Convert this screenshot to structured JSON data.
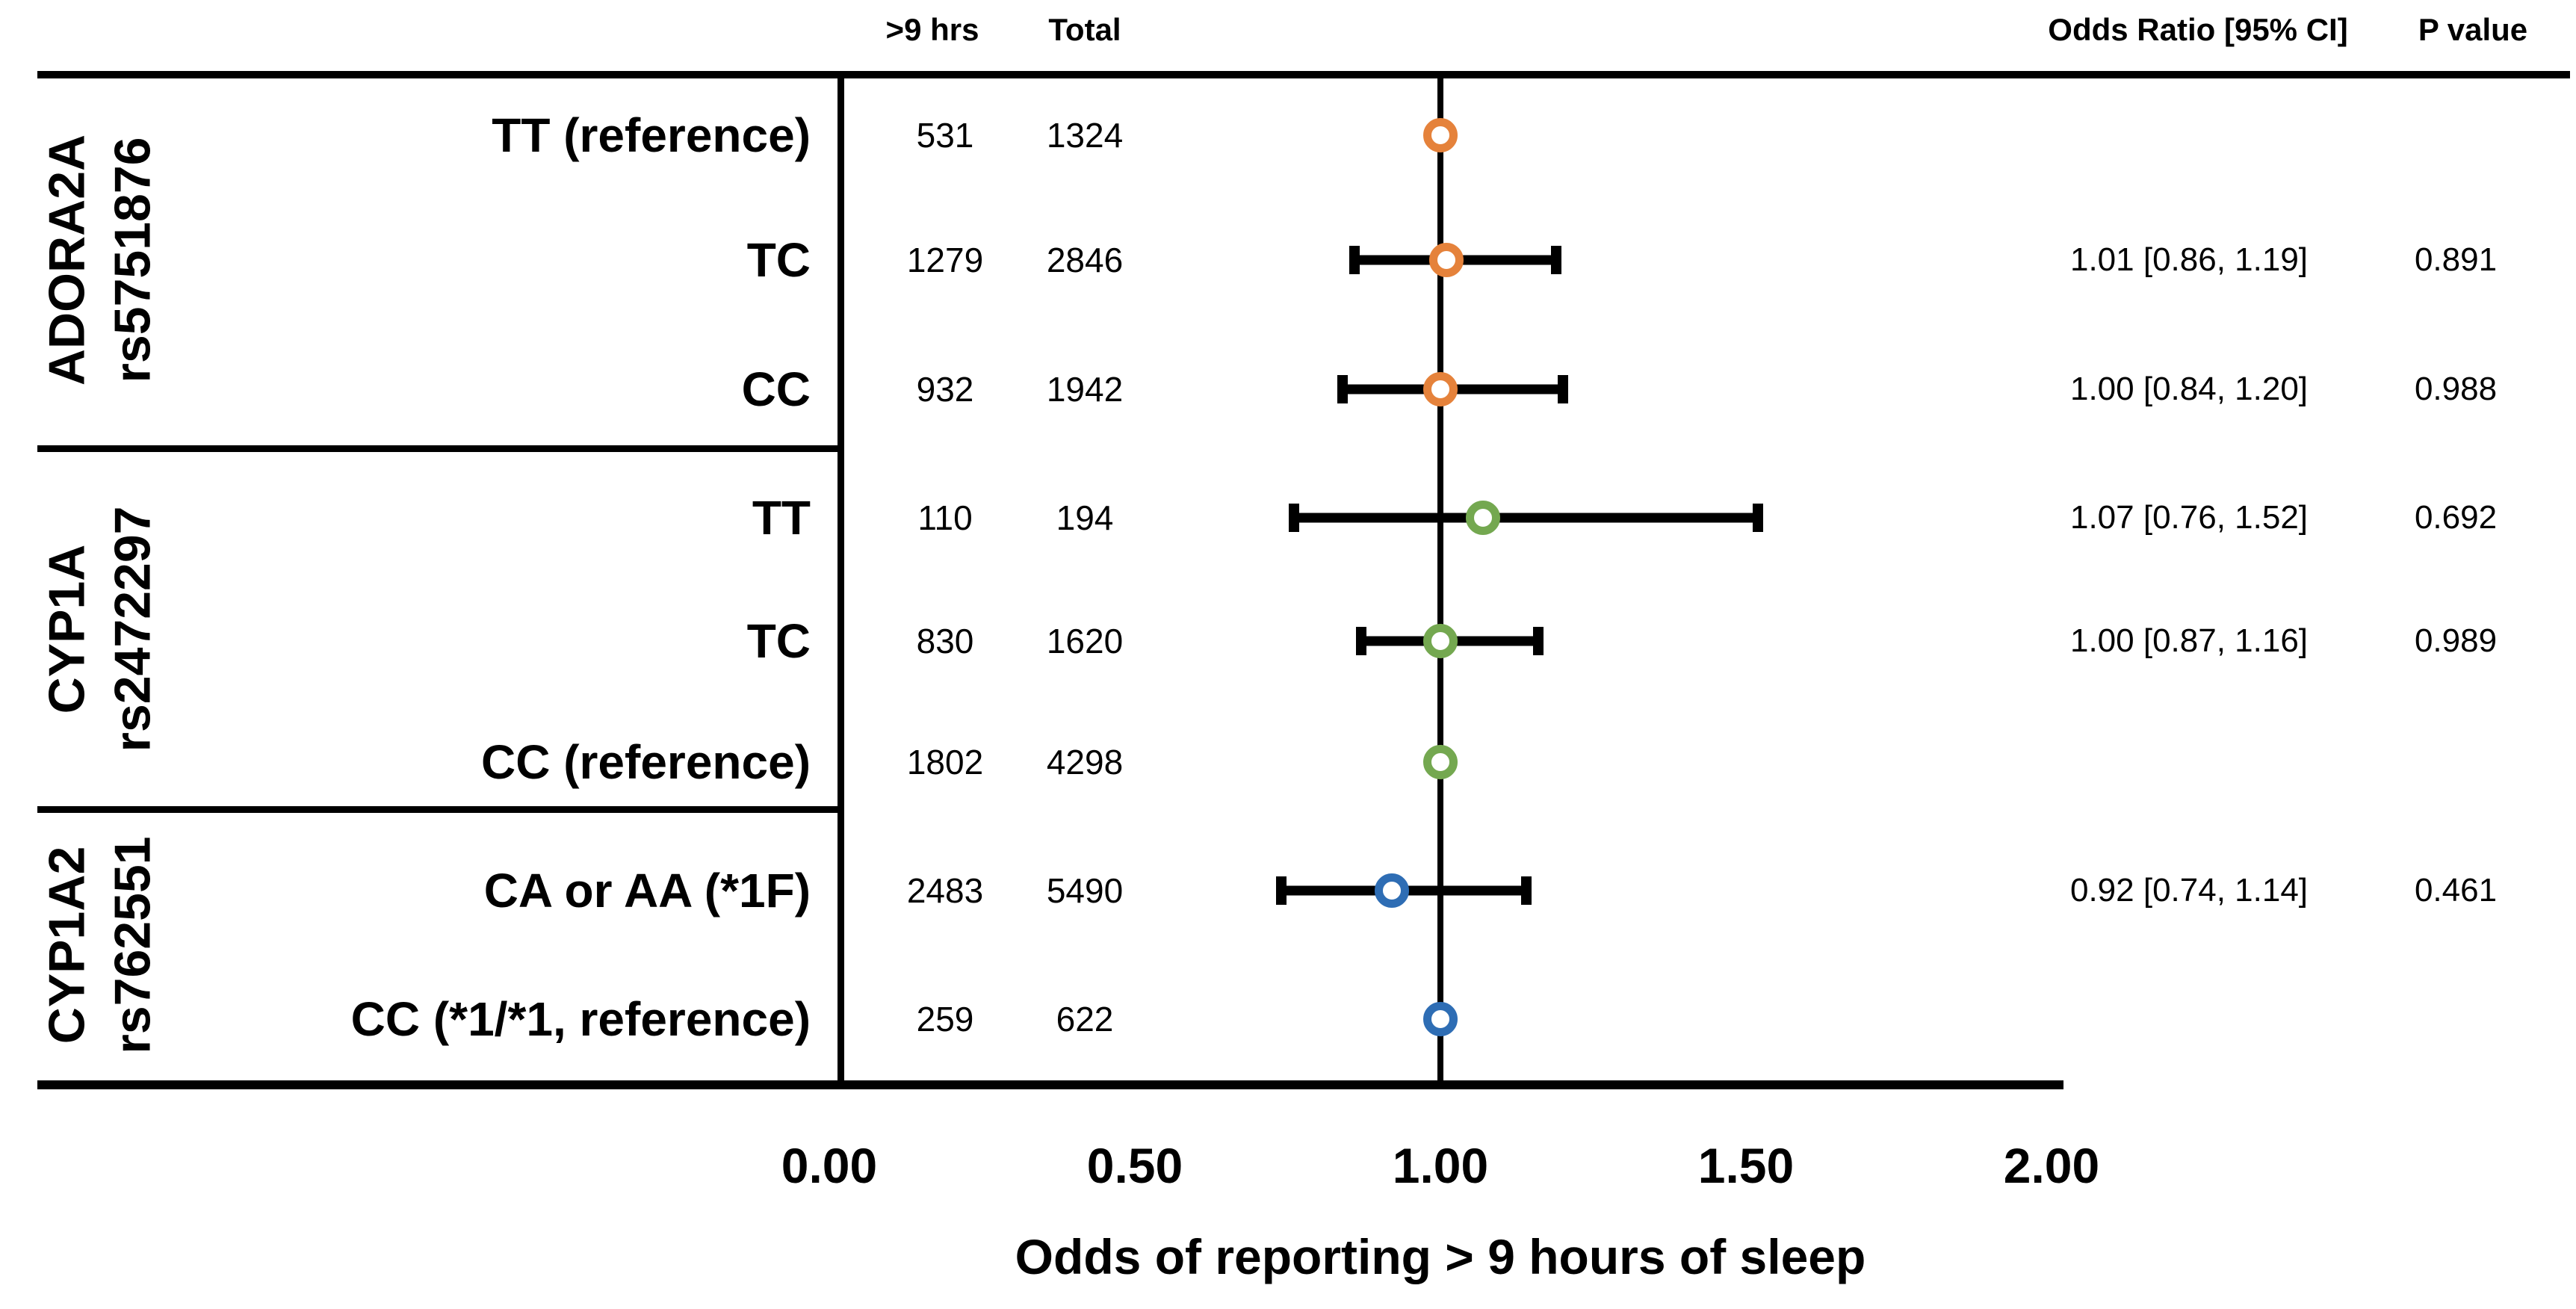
{
  "chart_data": {
    "type": "forest",
    "title": "",
    "xlabel": "Odds of reporting > 9 hours of sleep",
    "xlim": [
      0.0,
      2.0
    ],
    "reference_line": 1.0,
    "grid": false,
    "columns": [
      ">9 hrs",
      "Total",
      "Odds Ratio [95% CI]",
      "P value"
    ],
    "xticks": [
      {
        "label": "0.00",
        "value": 0.0
      },
      {
        "label": "0.50",
        "value": 0.5
      },
      {
        "label": "1.00",
        "value": 1.0
      },
      {
        "label": "1.50",
        "value": 1.5
      },
      {
        "label": "2.00",
        "value": 2.0
      }
    ],
    "groups": [
      {
        "gene": "ADORA2A",
        "rs": "rs5751876",
        "marker_color": "#E5823B",
        "rows": [
          {
            "genotype": "TT (reference)",
            "n_exposed": "531",
            "n_total": "1324",
            "or": 1.0,
            "ci": null,
            "or_label": "",
            "p_label": ""
          },
          {
            "genotype": "TC",
            "n_exposed": "1279",
            "n_total": "2846",
            "or": 1.01,
            "ci": [
              0.86,
              1.19
            ],
            "or_label": "1.01 [0.86, 1.19]",
            "p_label": "0.891"
          },
          {
            "genotype": "CC",
            "n_exposed": "932",
            "n_total": "1942",
            "or": 1.0,
            "ci": [
              0.84,
              1.2
            ],
            "or_label": "1.00 [0.84, 1.20]",
            "p_label": "0.988"
          }
        ]
      },
      {
        "gene": "CYP1A",
        "rs": "rs2472297",
        "marker_color": "#74A850",
        "rows": [
          {
            "genotype": "TT",
            "n_exposed": "110",
            "n_total": "194",
            "or": 1.07,
            "ci": [
              0.76,
              1.52
            ],
            "or_label": "1.07 [0.76, 1.52]",
            "p_label": "0.692"
          },
          {
            "genotype": "TC",
            "n_exposed": "830",
            "n_total": "1620",
            "or": 1.0,
            "ci": [
              0.87,
              1.16
            ],
            "or_label": "1.00 [0.87, 1.16]",
            "p_label": "0.989"
          },
          {
            "genotype": "CC (reference)",
            "n_exposed": "1802",
            "n_total": "4298",
            "or": 1.0,
            "ci": null,
            "or_label": "",
            "p_label": ""
          }
        ]
      },
      {
        "gene": "CYP1A2",
        "rs": "rs762551",
        "marker_color": "#2E6DB4",
        "rows": [
          {
            "genotype": "CA or AA (*1F)",
            "n_exposed": "2483",
            "n_total": "5490",
            "or": 0.92,
            "ci": [
              0.74,
              1.14
            ],
            "or_label": "0.92 [0.74, 1.14]",
            "p_label": "0.461"
          },
          {
            "genotype": "CC (*1/*1, reference)",
            "n_exposed": "259",
            "n_total": "622",
            "or": 1.0,
            "ci": null,
            "or_label": "",
            "p_label": ""
          }
        ]
      }
    ]
  }
}
